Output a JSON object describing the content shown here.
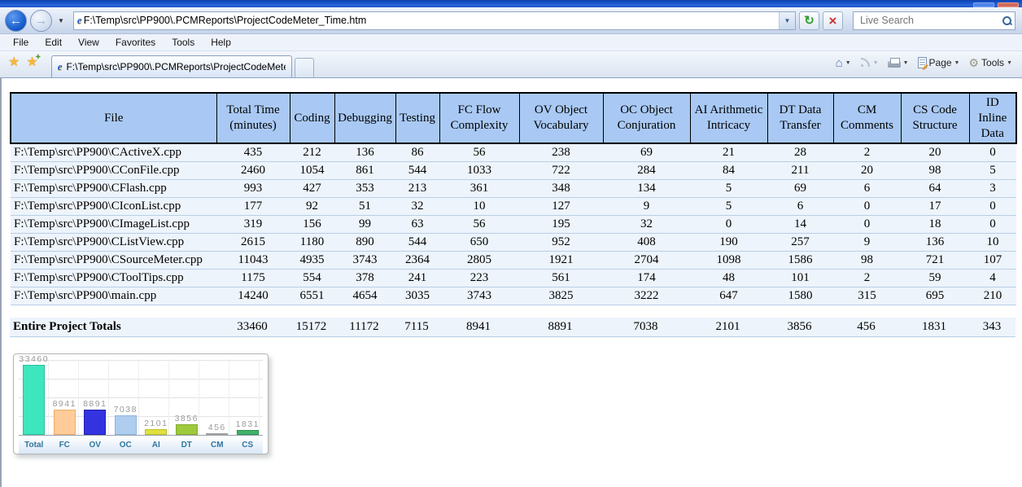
{
  "browser": {
    "address_url": "F:\\Temp\\src\\PP900\\.PCMReports\\ProjectCodeMeter_Time.htm",
    "search_placeholder": "Live Search",
    "menu_items": [
      "File",
      "Edit",
      "View",
      "Favorites",
      "Tools",
      "Help"
    ],
    "tab_title": "F:\\Temp\\src\\PP900\\.PCMReports\\ProjectCodeMeter_...",
    "commands": {
      "page_label": "Page",
      "tools_label": "Tools"
    }
  },
  "report": {
    "columns": [
      "File",
      "Total Time (minutes)",
      "Coding",
      "Debugging",
      "Testing",
      "FC Flow Complexity",
      "OV Object Vocabulary",
      "OC Object Conjuration",
      "AI Arithmetic Intricacy",
      "DT Data Transfer",
      "CM Comments",
      "CS Code Structure",
      "ID Inline Data"
    ],
    "rows": [
      {
        "file": "F:\\Temp\\src\\PP900\\CActiveX.cpp",
        "values": [
          435,
          212,
          136,
          86,
          56,
          238,
          69,
          21,
          28,
          2,
          20,
          0
        ]
      },
      {
        "file": "F:\\Temp\\src\\PP900\\CConFile.cpp",
        "values": [
          2460,
          1054,
          861,
          544,
          1033,
          722,
          284,
          84,
          211,
          20,
          98,
          5
        ]
      },
      {
        "file": "F:\\Temp\\src\\PP900\\CFlash.cpp",
        "values": [
          993,
          427,
          353,
          213,
          361,
          348,
          134,
          5,
          69,
          6,
          64,
          3
        ]
      },
      {
        "file": "F:\\Temp\\src\\PP900\\CIconList.cpp",
        "values": [
          177,
          92,
          51,
          32,
          10,
          127,
          9,
          5,
          6,
          0,
          17,
          0
        ]
      },
      {
        "file": "F:\\Temp\\src\\PP900\\CImageList.cpp",
        "values": [
          319,
          156,
          99,
          63,
          56,
          195,
          32,
          0,
          14,
          0,
          18,
          0
        ]
      },
      {
        "file": "F:\\Temp\\src\\PP900\\CListView.cpp",
        "values": [
          2615,
          1180,
          890,
          544,
          650,
          952,
          408,
          190,
          257,
          9,
          136,
          10
        ]
      },
      {
        "file": "F:\\Temp\\src\\PP900\\CSourceMeter.cpp",
        "values": [
          11043,
          4935,
          3743,
          2364,
          2805,
          1921,
          2704,
          1098,
          1586,
          98,
          721,
          107
        ]
      },
      {
        "file": "F:\\Temp\\src\\PP900\\CToolTips.cpp",
        "values": [
          1175,
          554,
          378,
          241,
          223,
          561,
          174,
          48,
          101,
          2,
          59,
          4
        ]
      },
      {
        "file": "F:\\Temp\\src\\PP900\\main.cpp",
        "values": [
          14240,
          6551,
          4654,
          3035,
          3743,
          3825,
          3222,
          647,
          1580,
          315,
          695,
          210
        ]
      }
    ],
    "totals": {
      "label": "Entire Project Totals",
      "values": [
        33460,
        15172,
        11172,
        7115,
        8941,
        8891,
        7038,
        2101,
        3856,
        456,
        1831,
        343
      ]
    }
  },
  "chart_data": {
    "type": "bar",
    "categories": [
      "Total",
      "FC",
      "OV",
      "OC",
      "AI",
      "DT",
      "CM",
      "CS"
    ],
    "values": [
      33460,
      8941,
      8891,
      7038,
      2101,
      3856,
      456,
      1831
    ],
    "title": "",
    "xlabel": "",
    "ylabel": "",
    "ylim": [
      0,
      27000
    ],
    "grid": true,
    "legend_position": "none",
    "data_labels": true,
    "bar_colors": [
      "#3ee6be",
      "#ffcc99",
      "#3333e0",
      "#aecdef",
      "#e0e040",
      "#9fc93c",
      "#efefef",
      "#41b26a"
    ],
    "bar_borders": [
      "#2bbf9c",
      "#edaa66",
      "#2222aa",
      "#8fb4e0",
      "#bfbf20",
      "#82a82b",
      "#9f9f9f",
      "#2f9151"
    ],
    "value_label_color": "#9a9a9a",
    "category_label_color": "#2e75a0"
  }
}
